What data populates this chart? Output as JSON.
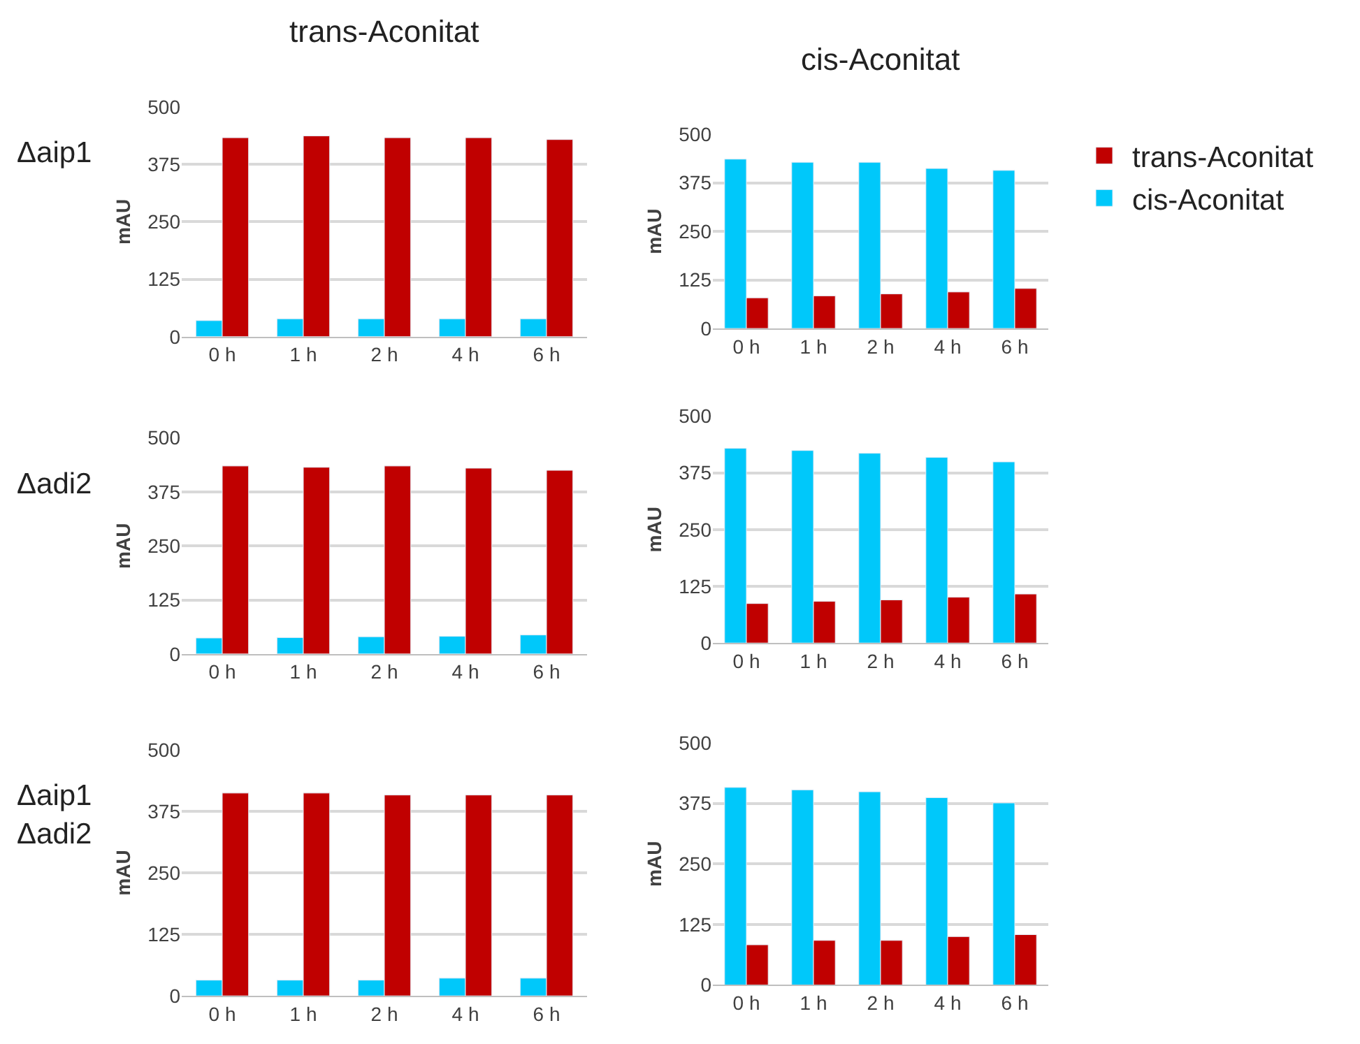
{
  "chart_data": [
    {
      "type": "bar",
      "title": "trans-Aconitat",
      "ylabel": "mAU",
      "annotations": [
        "Δaip1"
      ],
      "categories": [
        "0 h",
        "1 h",
        "2 h",
        "4 h",
        "6 h"
      ],
      "ylim": [
        0,
        500
      ],
      "yticks": [
        0,
        125,
        250,
        375,
        500
      ],
      "grid": "y",
      "legend": false,
      "series": [
        {
          "color": "#00c8fa",
          "values": [
            35,
            39,
            39,
            39,
            39
          ]
        },
        {
          "color": "#c00000",
          "values": [
            433,
            437,
            433,
            433,
            429
          ]
        }
      ]
    },
    {
      "type": "bar",
      "title": "cis-Aconitat",
      "ylabel": "mAU",
      "categories": [
        "0 h",
        "1 h",
        "2 h",
        "4 h",
        "6 h"
      ],
      "ylim": [
        0,
        500
      ],
      "yticks": [
        0,
        125,
        250,
        375,
        500
      ],
      "grid": "y",
      "legend": "right",
      "series": [
        {
          "name": "cis-Aconitat",
          "color": "#00c8fa",
          "values": [
            436,
            428,
            428,
            412,
            407
          ]
        },
        {
          "name": "trans-Aconitat",
          "color": "#c00000",
          "values": [
            79,
            84,
            89,
            94,
            103
          ]
        }
      ]
    },
    {
      "type": "bar",
      "ylabel": "mAU",
      "annotations": [
        "Δadi2"
      ],
      "categories": [
        "0 h",
        "1 h",
        "2 h",
        "4 h",
        "6 h"
      ],
      "ylim": [
        0,
        500
      ],
      "yticks": [
        0,
        125,
        250,
        375,
        500
      ],
      "grid": "y",
      "legend": false,
      "series": [
        {
          "color": "#00c8fa",
          "values": [
            37,
            38,
            40,
            41,
            44
          ]
        },
        {
          "color": "#c00000",
          "values": [
            435,
            432,
            435,
            430,
            425
          ]
        }
      ]
    },
    {
      "type": "bar",
      "ylabel": "mAU",
      "categories": [
        "0 h",
        "1 h",
        "2 h",
        "4 h",
        "6 h"
      ],
      "ylim": [
        0,
        500
      ],
      "yticks": [
        0,
        125,
        250,
        375,
        500
      ],
      "grid": "y",
      "legend": false,
      "series": [
        {
          "color": "#00c8fa",
          "values": [
            429,
            424,
            418,
            409,
            399
          ]
        },
        {
          "color": "#c00000",
          "values": [
            87,
            92,
            95,
            101,
            108
          ]
        }
      ]
    },
    {
      "type": "bar",
      "ylabel": "mAU",
      "annotations": [
        "Δaip1\nΔadi2"
      ],
      "categories": [
        "0 h",
        "1 h",
        "2 h",
        "4 h",
        "6 h"
      ],
      "ylim": [
        0,
        500
      ],
      "yticks": [
        0,
        125,
        250,
        375,
        500
      ],
      "grid": "y",
      "legend": false,
      "series": [
        {
          "color": "#00c8fa",
          "values": [
            32,
            32,
            32,
            36,
            36
          ]
        },
        {
          "color": "#c00000",
          "values": [
            412,
            412,
            408,
            408,
            408
          ]
        }
      ]
    },
    {
      "type": "bar",
      "ylabel": "mAU",
      "categories": [
        "0 h",
        "1 h",
        "2 h",
        "4 h",
        "6 h"
      ],
      "ylim": [
        0,
        500
      ],
      "yticks": [
        0,
        125,
        250,
        375,
        500
      ],
      "grid": "y",
      "legend": false,
      "series": [
        {
          "color": "#00c8fa",
          "values": [
            408,
            403,
            399,
            387,
            376
          ]
        },
        {
          "color": "#c00000",
          "values": [
            83,
            92,
            92,
            100,
            104
          ]
        }
      ]
    }
  ]
}
